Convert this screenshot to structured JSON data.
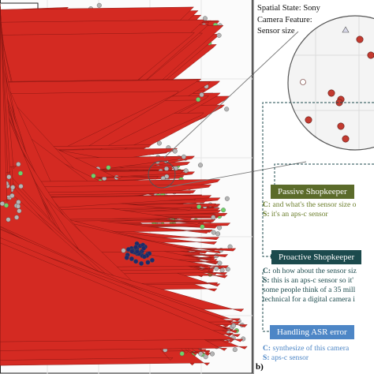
{
  "colors": {
    "red": "#d42a22",
    "green": "#6fd268",
    "navy": "#1d2a6b",
    "grey": "#b5b5b5",
    "passive_header": "#5b6b2a",
    "proactive_header": "#1c4a4d",
    "asr_header": "#4d86c6",
    "passive_text": "#6a7d2a",
    "proactive_text": "#1c4a4d",
    "asr_text": "#4d86c6"
  },
  "legend_box": {
    "text": ""
  },
  "context": {
    "line1": "Spatial State: Sony",
    "line2": "Camera Feature:",
    "line3": "Sensor size"
  },
  "dialogues": {
    "passive": {
      "header": "Passive Shopkeeper",
      "c_prefix": "C:",
      "c_text": " and what's the sensor size o",
      "s_prefix": "S:",
      "s_text": " it's an aps-c sensor"
    },
    "proactive": {
      "header": "Proactive Shopkeeper",
      "c_prefix": "C:",
      "c_text": " oh how about the sensor siz",
      "s_prefix": "S:",
      "s_text": " this is an aps-c sensor so it'",
      "line3": "some people think of a 35 mill",
      "line4": "technical for a digital camera i"
    },
    "asr": {
      "header": "Handling ASR error",
      "c_prefix": "C:",
      "c_text": " synthesize of this camera",
      "s_prefix": "S:",
      "s_text": " aps-c sensor"
    }
  },
  "panel_label": "b)"
}
